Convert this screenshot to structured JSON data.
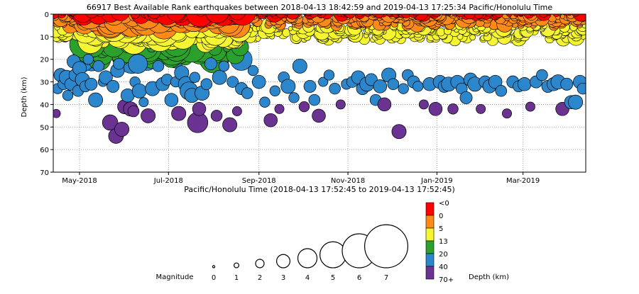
{
  "chart_data": {
    "type": "scatter",
    "title": "66917 Best Available Rank earthquakes between 2018-04-13 18:42:59 and 2019-04-13 17:25:34 Pacific/Honolulu Time",
    "xlabel": "Pacific/Honolulu Time (2018-04-13 17:52:45 to 2019-04-13 17:52:45)",
    "ylabel": "Depth (km)",
    "x_range": [
      "2018-04-13",
      "2019-04-13"
    ],
    "ylim": [
      70,
      0
    ],
    "x_ticks": [
      {
        "label": "May-2018",
        "date": "2018-05-01"
      },
      {
        "label": "Jul-2018",
        "date": "2018-07-01"
      },
      {
        "label": "Sep-2018",
        "date": "2018-09-01"
      },
      {
        "label": "Nov-2018",
        "date": "2018-11-01"
      },
      {
        "label": "Jan-2019",
        "date": "2019-01-01"
      },
      {
        "label": "Mar-2019",
        "date": "2019-03-01"
      }
    ],
    "y_ticks": [
      0,
      10,
      20,
      30,
      40,
      50,
      60,
      70
    ],
    "grid": true,
    "color_scale": {
      "title": "Depth (km)",
      "bands": [
        {
          "label": "<0",
          "color": "#ff0000"
        },
        {
          "label": "0",
          "color": "#ff8a1a"
        },
        {
          "label": "5",
          "color": "#f5f532"
        },
        {
          "label": "13",
          "color": "#2ca02c"
        },
        {
          "label": "20",
          "color": "#2b86cc"
        },
        {
          "label": "40",
          "color": "#6a3392"
        },
        {
          "label": "70+",
          "color": ""
        }
      ]
    },
    "size_legend": {
      "title": "Magnitude",
      "magnitudes": [
        "0",
        "1",
        "2",
        "3",
        "4",
        "5",
        "6",
        "7"
      ]
    },
    "points": [
      {
        "date": "2018-04-15",
        "depth": 44,
        "mag": 2.0
      },
      {
        "date": "2018-04-16",
        "depth": 33,
        "mag": 2.4
      },
      {
        "date": "2018-04-18",
        "depth": 27,
        "mag": 3.0
      },
      {
        "date": "2018-04-20",
        "depth": 31,
        "mag": 2.6
      },
      {
        "date": "2018-04-22",
        "depth": 28,
        "mag": 3.2
      },
      {
        "date": "2018-04-23",
        "depth": 36,
        "mag": 2.4
      },
      {
        "date": "2018-04-25",
        "depth": 31,
        "mag": 2.8
      },
      {
        "date": "2018-04-27",
        "depth": 21,
        "mag": 3.0
      },
      {
        "date": "2018-04-28",
        "depth": 27,
        "mag": 2.8
      },
      {
        "date": "2018-04-30",
        "depth": 34,
        "mag": 2.6
      },
      {
        "date": "2018-05-01",
        "depth": 24,
        "mag": 3.1
      },
      {
        "date": "2018-05-03",
        "depth": 29,
        "mag": 3.2
      },
      {
        "date": "2018-05-05",
        "depth": 32,
        "mag": 2.6
      },
      {
        "date": "2018-05-07",
        "depth": 20,
        "mag": 2.4
      },
      {
        "date": "2018-05-09",
        "depth": 31,
        "mag": 2.8
      },
      {
        "date": "2018-05-12",
        "depth": 38,
        "mag": 3.2
      },
      {
        "date": "2018-05-14",
        "depth": 23,
        "mag": 2.6
      },
      {
        "date": "2018-05-17",
        "depth": 30,
        "mag": 2.2
      },
      {
        "date": "2018-05-19",
        "depth": 28,
        "mag": 3.0
      },
      {
        "date": "2018-05-22",
        "depth": 48,
        "mag": 3.4
      },
      {
        "date": "2018-05-24",
        "depth": 32,
        "mag": 2.8
      },
      {
        "date": "2018-05-26",
        "depth": 54,
        "mag": 3.3
      },
      {
        "date": "2018-05-27",
        "depth": 25,
        "mag": 3.1
      },
      {
        "date": "2018-05-28",
        "depth": 22,
        "mag": 2.6
      },
      {
        "date": "2018-05-30",
        "depth": 51,
        "mag": 3.2
      },
      {
        "date": "2018-06-01",
        "depth": 41,
        "mag": 3.2
      },
      {
        "date": "2018-06-03",
        "depth": 36,
        "mag": 3.0
      },
      {
        "date": "2018-06-05",
        "depth": 42,
        "mag": 3.2
      },
      {
        "date": "2018-06-07",
        "depth": 43,
        "mag": 2.6
      },
      {
        "date": "2018-06-08",
        "depth": 30,
        "mag": 2.4
      },
      {
        "date": "2018-06-10",
        "depth": 22,
        "mag": 4.0
      },
      {
        "date": "2018-06-11",
        "depth": 34,
        "mag": 3.2
      },
      {
        "date": "2018-06-14",
        "depth": 39,
        "mag": 2.2
      },
      {
        "date": "2018-06-17",
        "depth": 45,
        "mag": 3.2
      },
      {
        "date": "2018-06-20",
        "depth": 33,
        "mag": 3.2
      },
      {
        "date": "2018-06-24",
        "depth": 23,
        "mag": 2.6
      },
      {
        "date": "2018-06-27",
        "depth": 31,
        "mag": 3.0
      },
      {
        "date": "2018-06-30",
        "depth": 29,
        "mag": 2.6
      },
      {
        "date": "2018-07-03",
        "depth": 38,
        "mag": 3.0
      },
      {
        "date": "2018-07-06",
        "depth": 30,
        "mag": 2.4
      },
      {
        "date": "2018-07-08",
        "depth": 44,
        "mag": 3.2
      },
      {
        "date": "2018-07-10",
        "depth": 26,
        "mag": 3.2
      },
      {
        "date": "2018-07-13",
        "depth": 31,
        "mag": 3.4
      },
      {
        "date": "2018-07-15",
        "depth": 34,
        "mag": 3.8
      },
      {
        "date": "2018-07-17",
        "depth": 36,
        "mag": 3.2
      },
      {
        "date": "2018-07-19",
        "depth": 28,
        "mag": 2.4
      },
      {
        "date": "2018-07-21",
        "depth": 48,
        "mag": 4.2
      },
      {
        "date": "2018-07-22",
        "depth": 42,
        "mag": 3.0
      },
      {
        "date": "2018-07-24",
        "depth": 35,
        "mag": 3.2
      },
      {
        "date": "2018-07-27",
        "depth": 31,
        "mag": 2.6
      },
      {
        "date": "2018-07-30",
        "depth": 22,
        "mag": 2.8
      },
      {
        "date": "2018-08-03",
        "depth": 45,
        "mag": 2.6
      },
      {
        "date": "2018-08-05",
        "depth": 28,
        "mag": 3.2
      },
      {
        "date": "2018-08-08",
        "depth": 23,
        "mag": 2.4
      },
      {
        "date": "2018-08-12",
        "depth": 49,
        "mag": 3.2
      },
      {
        "date": "2018-08-14",
        "depth": 30,
        "mag": 2.6
      },
      {
        "date": "2018-08-17",
        "depth": 43,
        "mag": 2.2
      },
      {
        "date": "2018-08-20",
        "depth": 33,
        "mag": 2.8
      },
      {
        "date": "2018-08-24",
        "depth": 35,
        "mag": 2.6
      },
      {
        "date": "2018-08-28",
        "depth": 25,
        "mag": 2.4
      },
      {
        "date": "2018-09-01",
        "depth": 30,
        "mag": 3.0
      },
      {
        "date": "2018-09-05",
        "depth": 39,
        "mag": 2.4
      },
      {
        "date": "2018-09-09",
        "depth": 47,
        "mag": 3.0
      },
      {
        "date": "2018-09-12",
        "depth": 34,
        "mag": 2.4
      },
      {
        "date": "2018-09-15",
        "depth": 42,
        "mag": 2.2
      },
      {
        "date": "2018-09-18",
        "depth": 28,
        "mag": 2.6
      },
      {
        "date": "2018-09-21",
        "depth": 32,
        "mag": 3.2
      },
      {
        "date": "2018-09-25",
        "depth": 37,
        "mag": 2.4
      },
      {
        "date": "2018-09-29",
        "depth": 23,
        "mag": 3.2
      },
      {
        "date": "2018-10-02",
        "depth": 41,
        "mag": 2.4
      },
      {
        "date": "2018-10-06",
        "depth": 32,
        "mag": 2.8
      },
      {
        "date": "2018-10-09",
        "depth": 38,
        "mag": 2.6
      },
      {
        "date": "2018-10-12",
        "depth": 45,
        "mag": 3.0
      },
      {
        "date": "2018-10-15",
        "depth": 30,
        "mag": 2.2
      },
      {
        "date": "2018-10-19",
        "depth": 27,
        "mag": 2.4
      },
      {
        "date": "2018-10-23",
        "depth": 33,
        "mag": 2.6
      },
      {
        "date": "2018-10-27",
        "depth": 40,
        "mag": 2.2
      },
      {
        "date": "2018-10-31",
        "depth": 31,
        "mag": 2.4
      },
      {
        "date": "2018-11-04",
        "depth": 30,
        "mag": 2.6
      },
      {
        "date": "2018-11-08",
        "depth": 28,
        "mag": 3.0
      },
      {
        "date": "2018-11-11",
        "depth": 33,
        "mag": 2.8
      },
      {
        "date": "2018-11-14",
        "depth": 31,
        "mag": 3.2
      },
      {
        "date": "2018-11-17",
        "depth": 29,
        "mag": 2.8
      },
      {
        "date": "2018-11-20",
        "depth": 38,
        "mag": 2.6
      },
      {
        "date": "2018-11-23",
        "depth": 32,
        "mag": 3.0
      },
      {
        "date": "2018-11-26",
        "depth": 40,
        "mag": 3.0
      },
      {
        "date": "2018-11-29",
        "depth": 27,
        "mag": 3.2
      },
      {
        "date": "2018-12-02",
        "depth": 31,
        "mag": 2.6
      },
      {
        "date": "2018-12-06",
        "depth": 52,
        "mag": 3.2
      },
      {
        "date": "2018-12-09",
        "depth": 33,
        "mag": 2.4
      },
      {
        "date": "2018-12-12",
        "depth": 27,
        "mag": 2.6
      },
      {
        "date": "2018-12-16",
        "depth": 30,
        "mag": 2.8
      },
      {
        "date": "2018-12-19",
        "depth": 32,
        "mag": 2.4
      },
      {
        "date": "2018-12-23",
        "depth": 40,
        "mag": 2.2
      },
      {
        "date": "2018-12-27",
        "depth": 31,
        "mag": 3.0
      },
      {
        "date": "2018-12-31",
        "depth": 42,
        "mag": 3.0
      },
      {
        "date": "2019-01-03",
        "depth": 30,
        "mag": 3.0
      },
      {
        "date": "2019-01-06",
        "depth": 32,
        "mag": 2.8
      },
      {
        "date": "2019-01-09",
        "depth": 31,
        "mag": 3.2
      },
      {
        "date": "2019-01-12",
        "depth": 42,
        "mag": 2.4
      },
      {
        "date": "2019-01-15",
        "depth": 30,
        "mag": 3.0
      },
      {
        "date": "2019-01-18",
        "depth": 33,
        "mag": 2.6
      },
      {
        "date": "2019-01-21",
        "depth": 37,
        "mag": 2.8
      },
      {
        "date": "2019-01-24",
        "depth": 29,
        "mag": 3.0
      },
      {
        "date": "2019-01-27",
        "depth": 31,
        "mag": 3.2
      },
      {
        "date": "2019-01-31",
        "depth": 42,
        "mag": 2.2
      },
      {
        "date": "2019-02-03",
        "depth": 30,
        "mag": 2.8
      },
      {
        "date": "2019-02-06",
        "depth": 32,
        "mag": 3.0
      },
      {
        "date": "2019-02-10",
        "depth": 30,
        "mag": 3.0
      },
      {
        "date": "2019-02-14",
        "depth": 34,
        "mag": 2.6
      },
      {
        "date": "2019-02-18",
        "depth": 44,
        "mag": 2.2
      },
      {
        "date": "2019-02-22",
        "depth": 30,
        "mag": 2.8
      },
      {
        "date": "2019-02-26",
        "depth": 32,
        "mag": 2.6
      },
      {
        "date": "2019-03-02",
        "depth": 31,
        "mag": 3.0
      },
      {
        "date": "2019-03-06",
        "depth": 41,
        "mag": 2.2
      },
      {
        "date": "2019-03-10",
        "depth": 30,
        "mag": 2.8
      },
      {
        "date": "2019-03-14",
        "depth": 27,
        "mag": 2.6
      },
      {
        "date": "2019-03-18",
        "depth": 32,
        "mag": 2.8
      },
      {
        "date": "2019-03-22",
        "depth": 31,
        "mag": 3.0
      },
      {
        "date": "2019-03-25",
        "depth": 30,
        "mag": 3.2
      },
      {
        "date": "2019-03-28",
        "depth": 42,
        "mag": 3.0
      },
      {
        "date": "2019-03-31",
        "depth": 31,
        "mag": 2.8
      },
      {
        "date": "2019-04-03",
        "depth": 39,
        "mag": 3.0
      },
      {
        "date": "2019-04-06",
        "depth": 39,
        "mag": 3.2
      },
      {
        "date": "2019-04-09",
        "depth": 30,
        "mag": 3.0
      },
      {
        "date": "2019-04-11",
        "depth": 33,
        "mag": 2.6
      }
    ]
  }
}
